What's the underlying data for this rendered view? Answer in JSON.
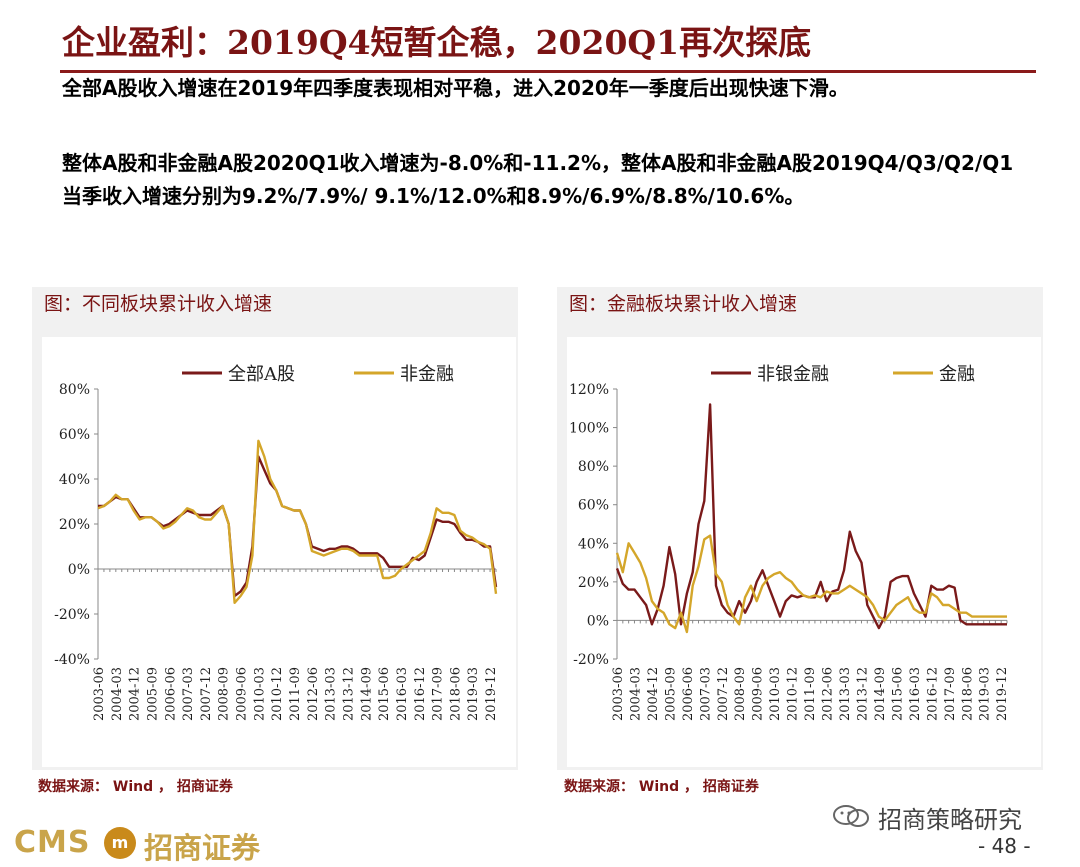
{
  "title": "企业盈利：2019Q4短暂企稳，2020Q1再次探底",
  "paragraphs": [
    "全部A股收入增速在2019年四季度表现相对平稳，进入2020年一季度后出现快速下滑。",
    "整体A股和非金融A股2020Q1收入增速为-8.0%和-11.2%，整体A股和非金融A股2019Q4/Q3/Q2/Q1当季收入增速分别为9.2%/7.9%/ 9.1%/12.0%和8.9%/6.9%/8.8%/10.6%。"
  ],
  "colors": {
    "accent": "#7a1414",
    "series_dark": "#7a1a1a",
    "series_gold": "#d4a62a",
    "panel_bg": "#f1f1f1"
  },
  "chart_left": {
    "panel_title": "图：不同板块累计收入增速",
    "source": "数据来源： Wind ， 招商证券"
  },
  "chart_right": {
    "panel_title": "图：金融板块累计收入增速",
    "source": "数据来源： Wind ， 招商证券"
  },
  "footer": {
    "logo_cms": "CMS",
    "logo_mark": "m",
    "logo_text": "招商证券",
    "wechat_account": "招商策略研究",
    "page_number": "- 48 -"
  },
  "chart_data": [
    {
      "type": "line",
      "title": "",
      "xlabel": "",
      "ylabel": "",
      "ylim": [
        -40,
        80
      ],
      "yticks": [
        -40,
        -20,
        0,
        20,
        40,
        60,
        80
      ],
      "ytick_labels": [
        "-40%",
        "-20%",
        "0%",
        "20%",
        "40%",
        "60%",
        "80%"
      ],
      "x_tick_labels": [
        "2003-06",
        "2004-03",
        "2004-12",
        "2005-09",
        "2006-06",
        "2007-03",
        "2007-12",
        "2008-09",
        "2009-06",
        "2010-03",
        "2010-12",
        "2011-09",
        "2012-06",
        "2013-03",
        "2013-12",
        "2014-09",
        "2015-06",
        "2016-03",
        "2016-12",
        "2017-09",
        "2018-06",
        "2019-03",
        "2019-12"
      ],
      "x": [
        "2003-06",
        "2003-09",
        "2003-12",
        "2004-03",
        "2004-06",
        "2004-09",
        "2004-12",
        "2005-03",
        "2005-06",
        "2005-09",
        "2005-12",
        "2006-03",
        "2006-06",
        "2006-09",
        "2006-12",
        "2007-03",
        "2007-06",
        "2007-09",
        "2007-12",
        "2008-03",
        "2008-06",
        "2008-09",
        "2008-12",
        "2009-03",
        "2009-06",
        "2009-09",
        "2009-12",
        "2010-03",
        "2010-06",
        "2010-09",
        "2010-12",
        "2011-03",
        "2011-06",
        "2011-09",
        "2011-12",
        "2012-03",
        "2012-06",
        "2012-09",
        "2012-12",
        "2013-03",
        "2013-06",
        "2013-09",
        "2013-12",
        "2014-03",
        "2014-06",
        "2014-09",
        "2014-12",
        "2015-03",
        "2015-06",
        "2015-09",
        "2015-12",
        "2016-03",
        "2016-06",
        "2016-09",
        "2016-12",
        "2017-03",
        "2017-06",
        "2017-09",
        "2017-12",
        "2018-03",
        "2018-06",
        "2018-09",
        "2018-12",
        "2019-03",
        "2019-06",
        "2019-09",
        "2019-12",
        "2020-03"
      ],
      "legend_position": "top",
      "series": [
        {
          "name": "全部A股",
          "color": "#7a1a1a",
          "values": [
            28,
            28,
            30,
            32,
            31,
            31,
            27,
            23,
            23,
            23,
            21,
            19,
            20,
            22,
            24,
            26,
            25,
            24,
            24,
            24,
            26,
            28,
            20,
            -12,
            -10,
            -6,
            10,
            50,
            44,
            38,
            35,
            28,
            27,
            26,
            26,
            20,
            10,
            9,
            8,
            9,
            9,
            10,
            10,
            9,
            7,
            7,
            7,
            7,
            5,
            1,
            1,
            1,
            1,
            5,
            4,
            6,
            14,
            22,
            21,
            21,
            20,
            16,
            13,
            13,
            12,
            10,
            10,
            -8
          ]
        },
        {
          "name": "非金融",
          "color": "#d4a62a",
          "values": [
            27,
            28,
            30,
            33,
            31,
            31,
            26,
            22,
            23,
            23,
            21,
            18,
            19,
            21,
            24,
            27,
            26,
            23,
            22,
            22,
            25,
            28,
            20,
            -15,
            -12,
            -8,
            6,
            57,
            50,
            40,
            35,
            28,
            27,
            26,
            26,
            20,
            8,
            7,
            6,
            7,
            8,
            9,
            9,
            8,
            6,
            6,
            6,
            6,
            -4,
            -4,
            -3,
            0,
            2,
            4,
            6,
            8,
            16,
            27,
            25,
            25,
            24,
            17,
            15,
            14,
            12,
            11,
            9,
            -11
          ]
        }
      ]
    },
    {
      "type": "line",
      "title": "",
      "xlabel": "",
      "ylabel": "",
      "ylim": [
        -20,
        120
      ],
      "yticks": [
        -20,
        0,
        20,
        40,
        60,
        80,
        100,
        120
      ],
      "ytick_labels": [
        "-20%",
        "0%",
        "20%",
        "40%",
        "60%",
        "80%",
        "100%",
        "120%"
      ],
      "x_tick_labels": [
        "2003-06",
        "2004-03",
        "2004-12",
        "2005-09",
        "2006-06",
        "2007-03",
        "2007-12",
        "2008-09",
        "2009-06",
        "2010-03",
        "2010-12",
        "2011-09",
        "2012-06",
        "2013-03",
        "2013-12",
        "2014-09",
        "2015-06",
        "2016-03",
        "2016-12",
        "2017-09",
        "2018-06",
        "2019-03",
        "2019-12"
      ],
      "x": [
        "2003-06",
        "2003-09",
        "2003-12",
        "2004-03",
        "2004-06",
        "2004-09",
        "2004-12",
        "2005-03",
        "2005-06",
        "2005-09",
        "2005-12",
        "2006-03",
        "2006-06",
        "2006-09",
        "2006-12",
        "2007-03",
        "2007-06",
        "2007-09",
        "2007-12",
        "2008-03",
        "2008-06",
        "2008-09",
        "2008-12",
        "2009-03",
        "2009-06",
        "2009-09",
        "2009-12",
        "2010-03",
        "2010-06",
        "2010-09",
        "2010-12",
        "2011-03",
        "2011-06",
        "2011-09",
        "2011-12",
        "2012-03",
        "2012-06",
        "2012-09",
        "2012-12",
        "2013-03",
        "2013-06",
        "2013-09",
        "2013-12",
        "2014-03",
        "2014-06",
        "2014-09",
        "2014-12",
        "2015-03",
        "2015-06",
        "2015-09",
        "2015-12",
        "2016-03",
        "2016-06",
        "2016-09",
        "2016-12",
        "2017-03",
        "2017-06",
        "2017-09",
        "2017-12",
        "2018-03",
        "2018-06",
        "2018-09",
        "2018-12",
        "2019-03",
        "2019-06",
        "2019-09",
        "2019-12",
        "2020-03"
      ],
      "legend_position": "top",
      "series": [
        {
          "name": "非银金融",
          "color": "#7a1a1a",
          "values": [
            27,
            19,
            16,
            16,
            12,
            8,
            -2,
            6,
            18,
            38,
            24,
            -2,
            14,
            25,
            50,
            62,
            112,
            18,
            8,
            4,
            2,
            10,
            4,
            10,
            20,
            26,
            18,
            10,
            2,
            10,
            13,
            12,
            13,
            12,
            12,
            20,
            10,
            15,
            16,
            26,
            46,
            36,
            30,
            8,
            2,
            -4,
            2,
            20,
            22,
            23,
            23,
            14,
            8,
            2,
            18,
            16,
            16,
            18,
            17,
            0,
            -2,
            -2,
            -2,
            -2,
            -2,
            -2,
            -2,
            -2
          ]
        },
        {
          "name": "金融",
          "color": "#d4a62a",
          "values": [
            35,
            25,
            40,
            35,
            30,
            22,
            10,
            6,
            4,
            -2,
            -4,
            4,
            -6,
            18,
            28,
            42,
            44,
            24,
            20,
            8,
            2,
            -2,
            12,
            18,
            10,
            18,
            22,
            24,
            25,
            22,
            20,
            16,
            13,
            12,
            13,
            12,
            15,
            14,
            14,
            16,
            18,
            16,
            14,
            12,
            8,
            2,
            0,
            4,
            8,
            10,
            12,
            6,
            4,
            4,
            14,
            12,
            8,
            8,
            6,
            4,
            4,
            2,
            2,
            2,
            2,
            2,
            2,
            2
          ]
        }
      ]
    }
  ]
}
